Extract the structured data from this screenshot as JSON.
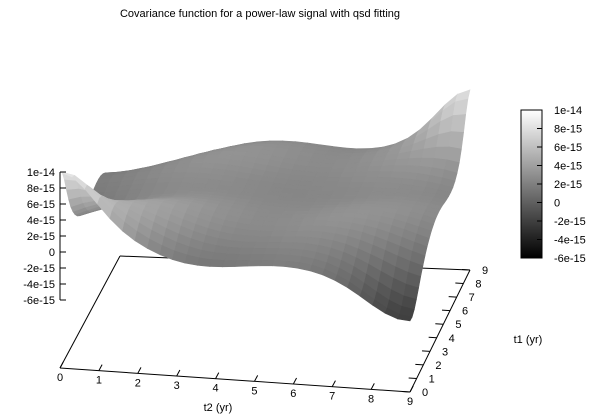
{
  "chart_data": {
    "type": "surface",
    "title": "Covariance function for a power-law signal with qsd fitting",
    "xlabel": "t2 (yr)",
    "ylabel": "t1 (yr)",
    "xlim": [
      0,
      9
    ],
    "ylim": [
      0,
      9
    ],
    "x_ticks": [
      "0",
      "1",
      "2",
      "3",
      "4",
      "5",
      "6",
      "7",
      "8",
      "9"
    ],
    "y_ticks": [
      "0",
      "1",
      "2",
      "3",
      "4",
      "5",
      "6",
      "7",
      "8",
      "9"
    ],
    "z_ticks": [
      "1e-14",
      "8e-15",
      "6e-15",
      "4e-15",
      "2e-15",
      "0",
      "-2e-15",
      "-4e-15",
      "-6e-15"
    ],
    "zlim": [
      -6e-15,
      1e-14
    ],
    "colorbar": {
      "min": -6e-15,
      "max": 1e-14,
      "ticks": [
        "1e-14",
        "8e-15",
        "6e-15",
        "4e-15",
        "2e-15",
        "0",
        "-2e-15",
        "-4e-15",
        "-6e-15"
      ],
      "colors": [
        "#000000",
        "#ffffff"
      ],
      "position": "right"
    },
    "surface_approx": {
      "note_free": true,
      "corner_values": {
        "t2_0_t1_0": 1e-14,
        "t2_9_t1_9": 1e-14,
        "t2_0_t1_9": -6e-15,
        "t2_9_t1_0": -6e-15
      },
      "diagonal_peak": 1e-14,
      "offdiagonal_trough": -6e-15
    },
    "grid": false,
    "legend": "none"
  }
}
